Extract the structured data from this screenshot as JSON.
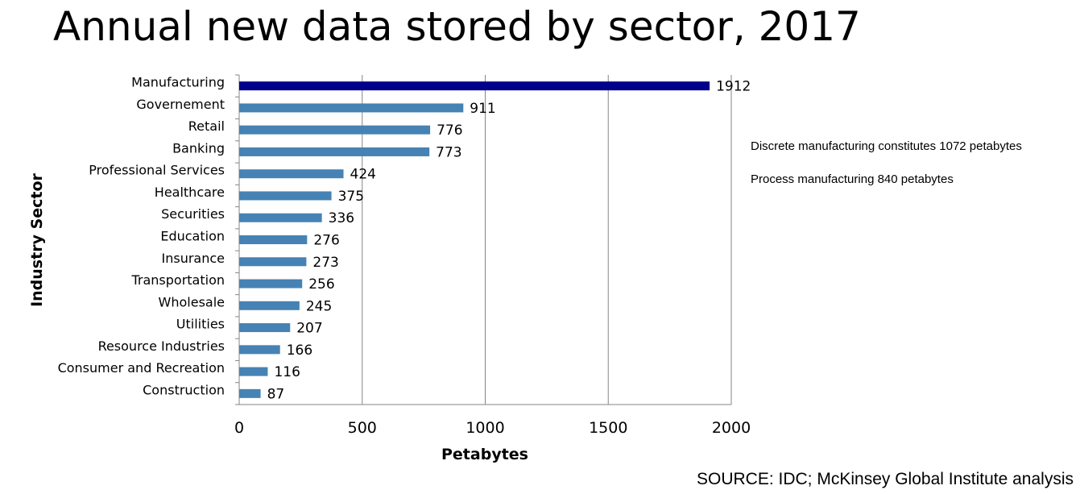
{
  "title": "Annual new data stored by sector, 2017",
  "notes": [
    "Discrete manufacturing constitutes 1072 petabytes",
    "Process manufacturing 840 petabytes"
  ],
  "source": "SOURCE: IDC; McKinsey Global Institute analysis",
  "chart_data": {
    "type": "bar",
    "orientation": "horizontal",
    "title": "Annual new data stored by sector, 2017",
    "xlabel": "Petabytes",
    "ylabel": "Industry Sector",
    "xlim": [
      0,
      2000
    ],
    "xticks": [
      0,
      500,
      1000,
      1500,
      2000
    ],
    "grid": "vertical",
    "categories": [
      "Manufacturing",
      "Governement",
      "Retail",
      "Banking",
      "Professional Services",
      "Healthcare",
      "Securities",
      "Education",
      "Insurance",
      "Transportation",
      "Wholesale",
      "Utilities",
      "Resource Industries",
      "Consumer and Recreation",
      "Construction"
    ],
    "values": [
      1912,
      911,
      776,
      773,
      424,
      375,
      336,
      276,
      273,
      256,
      245,
      207,
      166,
      116,
      87
    ],
    "highlight_color": "#00008b",
    "bar_color": "#4682b4"
  }
}
